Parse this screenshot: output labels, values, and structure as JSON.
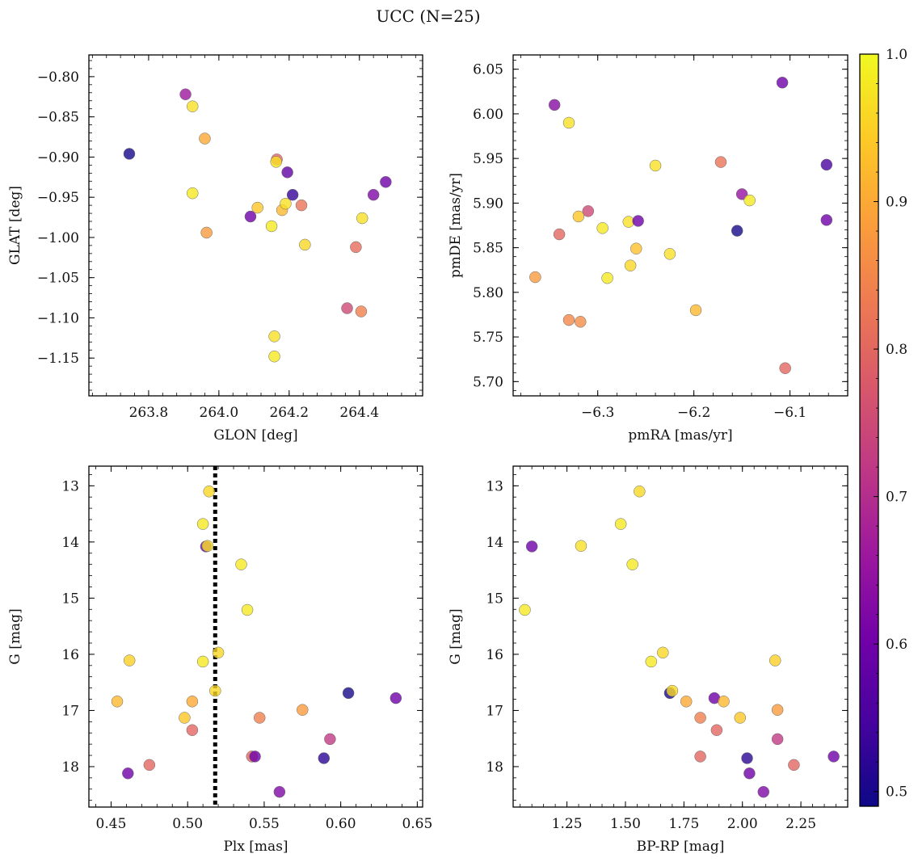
{
  "figure": {
    "title": "UCC (N=25)",
    "colormap": [
      "#0d0887",
      "#46039f",
      "#7201a8",
      "#9c179e",
      "#bd3786",
      "#d8576b",
      "#ed7953",
      "#fb9f3a",
      "#fdca26",
      "#f0f921"
    ],
    "colorbar": {
      "range": [
        0.49,
        1.0
      ],
      "ticks": [
        0.5,
        0.6,
        0.7,
        0.8,
        0.9,
        1.0
      ],
      "tick_labels": [
        "0.5",
        "0.6",
        "0.7",
        "0.8",
        "0.9",
        "1.0"
      ]
    }
  },
  "chart_data": [
    {
      "type": "scatter",
      "id": "sky",
      "xlabel": "GLON [deg]",
      "ylabel": "GLAT [deg]",
      "xlim": [
        263.63,
        264.58
      ],
      "ylim": [
        -1.197,
        -0.773
      ],
      "y_inverted": false,
      "x_ticks": [
        263.8,
        264.0,
        264.2,
        264.4
      ],
      "x_tick_labels": [
        "263.8",
        "264.0",
        "264.2",
        "264.4"
      ],
      "y_ticks": [
        -0.8,
        -0.85,
        -0.9,
        -0.95,
        -1.0,
        -1.05,
        -1.1,
        -1.15
      ],
      "y_tick_labels": [
        "−0.80",
        "−0.85",
        "−0.90",
        "−0.95",
        "−1.00",
        "−1.05",
        "−1.10",
        "−1.15"
      ],
      "points": [
        {
          "x": 263.745,
          "y": -0.896,
          "c": 0.5
        },
        {
          "x": 263.905,
          "y": -0.822,
          "c": 0.66
        },
        {
          "x": 263.925,
          "y": -0.837,
          "c": 0.97
        },
        {
          "x": 263.96,
          "y": -0.877,
          "c": 0.9
        },
        {
          "x": 263.925,
          "y": -0.945,
          "c": 0.98
        },
        {
          "x": 263.965,
          "y": -0.994,
          "c": 0.88
        },
        {
          "x": 264.09,
          "y": -0.974,
          "c": 0.6
        },
        {
          "x": 264.11,
          "y": -0.963,
          "c": 0.94
        },
        {
          "x": 264.15,
          "y": -0.986,
          "c": 0.98
        },
        {
          "x": 264.165,
          "y": -0.903,
          "c": 0.8
        },
        {
          "x": 264.163,
          "y": -0.906,
          "c": 0.97
        },
        {
          "x": 264.195,
          "y": -0.919,
          "c": 0.58
        },
        {
          "x": 264.21,
          "y": -0.947,
          "c": 0.53
        },
        {
          "x": 264.18,
          "y": -0.966,
          "c": 0.92
        },
        {
          "x": 264.19,
          "y": -0.958,
          "c": 0.97
        },
        {
          "x": 264.235,
          "y": -0.96,
          "c": 0.82
        },
        {
          "x": 264.245,
          "y": -1.009,
          "c": 0.96
        },
        {
          "x": 264.158,
          "y": -1.123,
          "c": 0.97
        },
        {
          "x": 264.158,
          "y": -1.148,
          "c": 0.98
        },
        {
          "x": 264.365,
          "y": -1.088,
          "c": 0.75
        },
        {
          "x": 264.39,
          "y": -1.012,
          "c": 0.81
        },
        {
          "x": 264.405,
          "y": -1.092,
          "c": 0.84
        },
        {
          "x": 264.408,
          "y": -0.976,
          "c": 0.97
        },
        {
          "x": 264.44,
          "y": -0.947,
          "c": 0.62
        },
        {
          "x": 264.475,
          "y": -0.931,
          "c": 0.6
        }
      ]
    },
    {
      "type": "scatter",
      "id": "pm",
      "xlabel": "pmRA [mas/yr]",
      "ylabel": "pmDE [mas/yr]",
      "xlim": [
        -6.388,
        -6.04
      ],
      "ylim": [
        5.684,
        6.066
      ],
      "y_inverted": false,
      "x_ticks": [
        -6.3,
        -6.2,
        -6.1
      ],
      "x_tick_labels": [
        "−6.3",
        "−6.2",
        "−6.1"
      ],
      "y_ticks": [
        5.7,
        5.75,
        5.8,
        5.85,
        5.9,
        5.95,
        6.0,
        6.05
      ],
      "y_tick_labels": [
        "5.70",
        "5.75",
        "5.80",
        "5.85",
        "5.90",
        "5.95",
        "6.00",
        "6.05"
      ],
      "points": [
        {
          "x": -6.345,
          "y": 6.01,
          "c": 0.63
        },
        {
          "x": -6.33,
          "y": 5.99,
          "c": 0.97
        },
        {
          "x": -6.108,
          "y": 6.035,
          "c": 0.6
        },
        {
          "x": -6.062,
          "y": 5.943,
          "c": 0.55
        },
        {
          "x": -6.24,
          "y": 5.942,
          "c": 0.97
        },
        {
          "x": -6.172,
          "y": 5.946,
          "c": 0.82
        },
        {
          "x": -6.15,
          "y": 5.91,
          "c": 0.65
        },
        {
          "x": -6.142,
          "y": 5.903,
          "c": 0.98
        },
        {
          "x": -6.062,
          "y": 5.881,
          "c": 0.6
        },
        {
          "x": -6.31,
          "y": 5.891,
          "c": 0.75
        },
        {
          "x": -6.32,
          "y": 5.885,
          "c": 0.94
        },
        {
          "x": -6.268,
          "y": 5.879,
          "c": 0.97
        },
        {
          "x": -6.258,
          "y": 5.88,
          "c": 0.6
        },
        {
          "x": -6.295,
          "y": 5.872,
          "c": 0.98
        },
        {
          "x": -6.34,
          "y": 5.865,
          "c": 0.8
        },
        {
          "x": -6.155,
          "y": 5.869,
          "c": 0.5
        },
        {
          "x": -6.26,
          "y": 5.849,
          "c": 0.93
        },
        {
          "x": -6.225,
          "y": 5.843,
          "c": 0.97
        },
        {
          "x": -6.266,
          "y": 5.83,
          "c": 0.96
        },
        {
          "x": -6.365,
          "y": 5.817,
          "c": 0.88
        },
        {
          "x": -6.29,
          "y": 5.816,
          "c": 0.98
        },
        {
          "x": -6.198,
          "y": 5.78,
          "c": 0.92
        },
        {
          "x": -6.33,
          "y": 5.769,
          "c": 0.85
        },
        {
          "x": -6.318,
          "y": 5.767,
          "c": 0.86
        },
        {
          "x": -6.105,
          "y": 5.715,
          "c": 0.8
        }
      ]
    },
    {
      "type": "scatter",
      "id": "plx",
      "xlabel": "Plx [mas]",
      "ylabel": "G [mag]",
      "xlim": [
        0.4355,
        0.6535
      ],
      "ylim": [
        12.65,
        18.72
      ],
      "y_inverted": true,
      "vline": 0.518,
      "x_ticks": [
        0.45,
        0.5,
        0.55,
        0.6,
        0.65
      ],
      "x_tick_labels": [
        "0.45",
        "0.50",
        "0.55",
        "0.60",
        "0.65"
      ],
      "y_ticks": [
        13,
        14,
        15,
        16,
        17,
        18
      ],
      "y_tick_labels": [
        "13",
        "14",
        "15",
        "16",
        "17",
        "18"
      ],
      "points": [
        {
          "x": 0.514,
          "y": 13.1,
          "c": 0.96
        },
        {
          "x": 0.51,
          "y": 13.68,
          "c": 0.98
        },
        {
          "x": 0.512,
          "y": 14.08,
          "c": 0.6
        },
        {
          "x": 0.513,
          "y": 14.07,
          "c": 0.97
        },
        {
          "x": 0.535,
          "y": 14.4,
          "c": 0.98
        },
        {
          "x": 0.539,
          "y": 15.21,
          "c": 0.98
        },
        {
          "x": 0.52,
          "y": 15.97,
          "c": 0.96
        },
        {
          "x": 0.462,
          "y": 16.11,
          "c": 0.95
        },
        {
          "x": 0.51,
          "y": 16.13,
          "c": 0.98
        },
        {
          "x": 0.518,
          "y": 16.65,
          "c": 0.96
        },
        {
          "x": 0.605,
          "y": 16.69,
          "c": 0.5
        },
        {
          "x": 0.636,
          "y": 16.78,
          "c": 0.6
        },
        {
          "x": 0.454,
          "y": 16.84,
          "c": 0.92
        },
        {
          "x": 0.503,
          "y": 16.84,
          "c": 0.9
        },
        {
          "x": 0.575,
          "y": 16.99,
          "c": 0.88
        },
        {
          "x": 0.498,
          "y": 17.13,
          "c": 0.94
        },
        {
          "x": 0.547,
          "y": 17.13,
          "c": 0.84
        },
        {
          "x": 0.503,
          "y": 17.35,
          "c": 0.8
        },
        {
          "x": 0.593,
          "y": 17.51,
          "c": 0.72
        },
        {
          "x": 0.542,
          "y": 17.82,
          "c": 0.8
        },
        {
          "x": 0.544,
          "y": 17.82,
          "c": 0.6
        },
        {
          "x": 0.589,
          "y": 17.85,
          "c": 0.52
        },
        {
          "x": 0.475,
          "y": 17.97,
          "c": 0.8
        },
        {
          "x": 0.461,
          "y": 18.12,
          "c": 0.6
        },
        {
          "x": 0.56,
          "y": 18.45,
          "c": 0.62
        }
      ]
    },
    {
      "type": "scatter",
      "id": "cmd",
      "xlabel": "BP-RP [mag]",
      "ylabel": "G [mag]",
      "xlim": [
        1.02,
        2.45
      ],
      "ylim": [
        12.65,
        18.72
      ],
      "y_inverted": true,
      "x_ticks": [
        1.25,
        1.5,
        1.75,
        2.0,
        2.25
      ],
      "x_tick_labels": [
        "1.25",
        "1.50",
        "1.75",
        "2.00",
        "2.25"
      ],
      "y_ticks": [
        13,
        14,
        15,
        16,
        17,
        18
      ],
      "y_tick_labels": [
        "13",
        "14",
        "15",
        "16",
        "17",
        "18"
      ],
      "points": [
        {
          "x": 1.56,
          "y": 13.1,
          "c": 0.96
        },
        {
          "x": 1.48,
          "y": 13.68,
          "c": 0.98
        },
        {
          "x": 1.1,
          "y": 14.08,
          "c": 0.6
        },
        {
          "x": 1.31,
          "y": 14.07,
          "c": 0.97
        },
        {
          "x": 1.53,
          "y": 14.4,
          "c": 0.98
        },
        {
          "x": 1.07,
          "y": 15.21,
          "c": 0.98
        },
        {
          "x": 1.66,
          "y": 15.97,
          "c": 0.96
        },
        {
          "x": 1.61,
          "y": 16.13,
          "c": 0.98
        },
        {
          "x": 2.14,
          "y": 16.11,
          "c": 0.95
        },
        {
          "x": 1.69,
          "y": 16.69,
          "c": 0.5
        },
        {
          "x": 1.7,
          "y": 16.65,
          "c": 0.96
        },
        {
          "x": 1.88,
          "y": 16.78,
          "c": 0.6
        },
        {
          "x": 1.76,
          "y": 16.84,
          "c": 0.9
        },
        {
          "x": 1.92,
          "y": 16.84,
          "c": 0.92
        },
        {
          "x": 2.15,
          "y": 16.99,
          "c": 0.88
        },
        {
          "x": 1.82,
          "y": 17.13,
          "c": 0.84
        },
        {
          "x": 1.99,
          "y": 17.13,
          "c": 0.94
        },
        {
          "x": 1.89,
          "y": 17.35,
          "c": 0.8
        },
        {
          "x": 2.15,
          "y": 17.51,
          "c": 0.72
        },
        {
          "x": 1.82,
          "y": 17.82,
          "c": 0.8
        },
        {
          "x": 2.39,
          "y": 17.82,
          "c": 0.6
        },
        {
          "x": 2.02,
          "y": 17.85,
          "c": 0.52
        },
        {
          "x": 2.22,
          "y": 17.97,
          "c": 0.8
        },
        {
          "x": 2.03,
          "y": 18.12,
          "c": 0.6
        },
        {
          "x": 2.09,
          "y": 18.45,
          "c": 0.62
        }
      ]
    }
  ]
}
